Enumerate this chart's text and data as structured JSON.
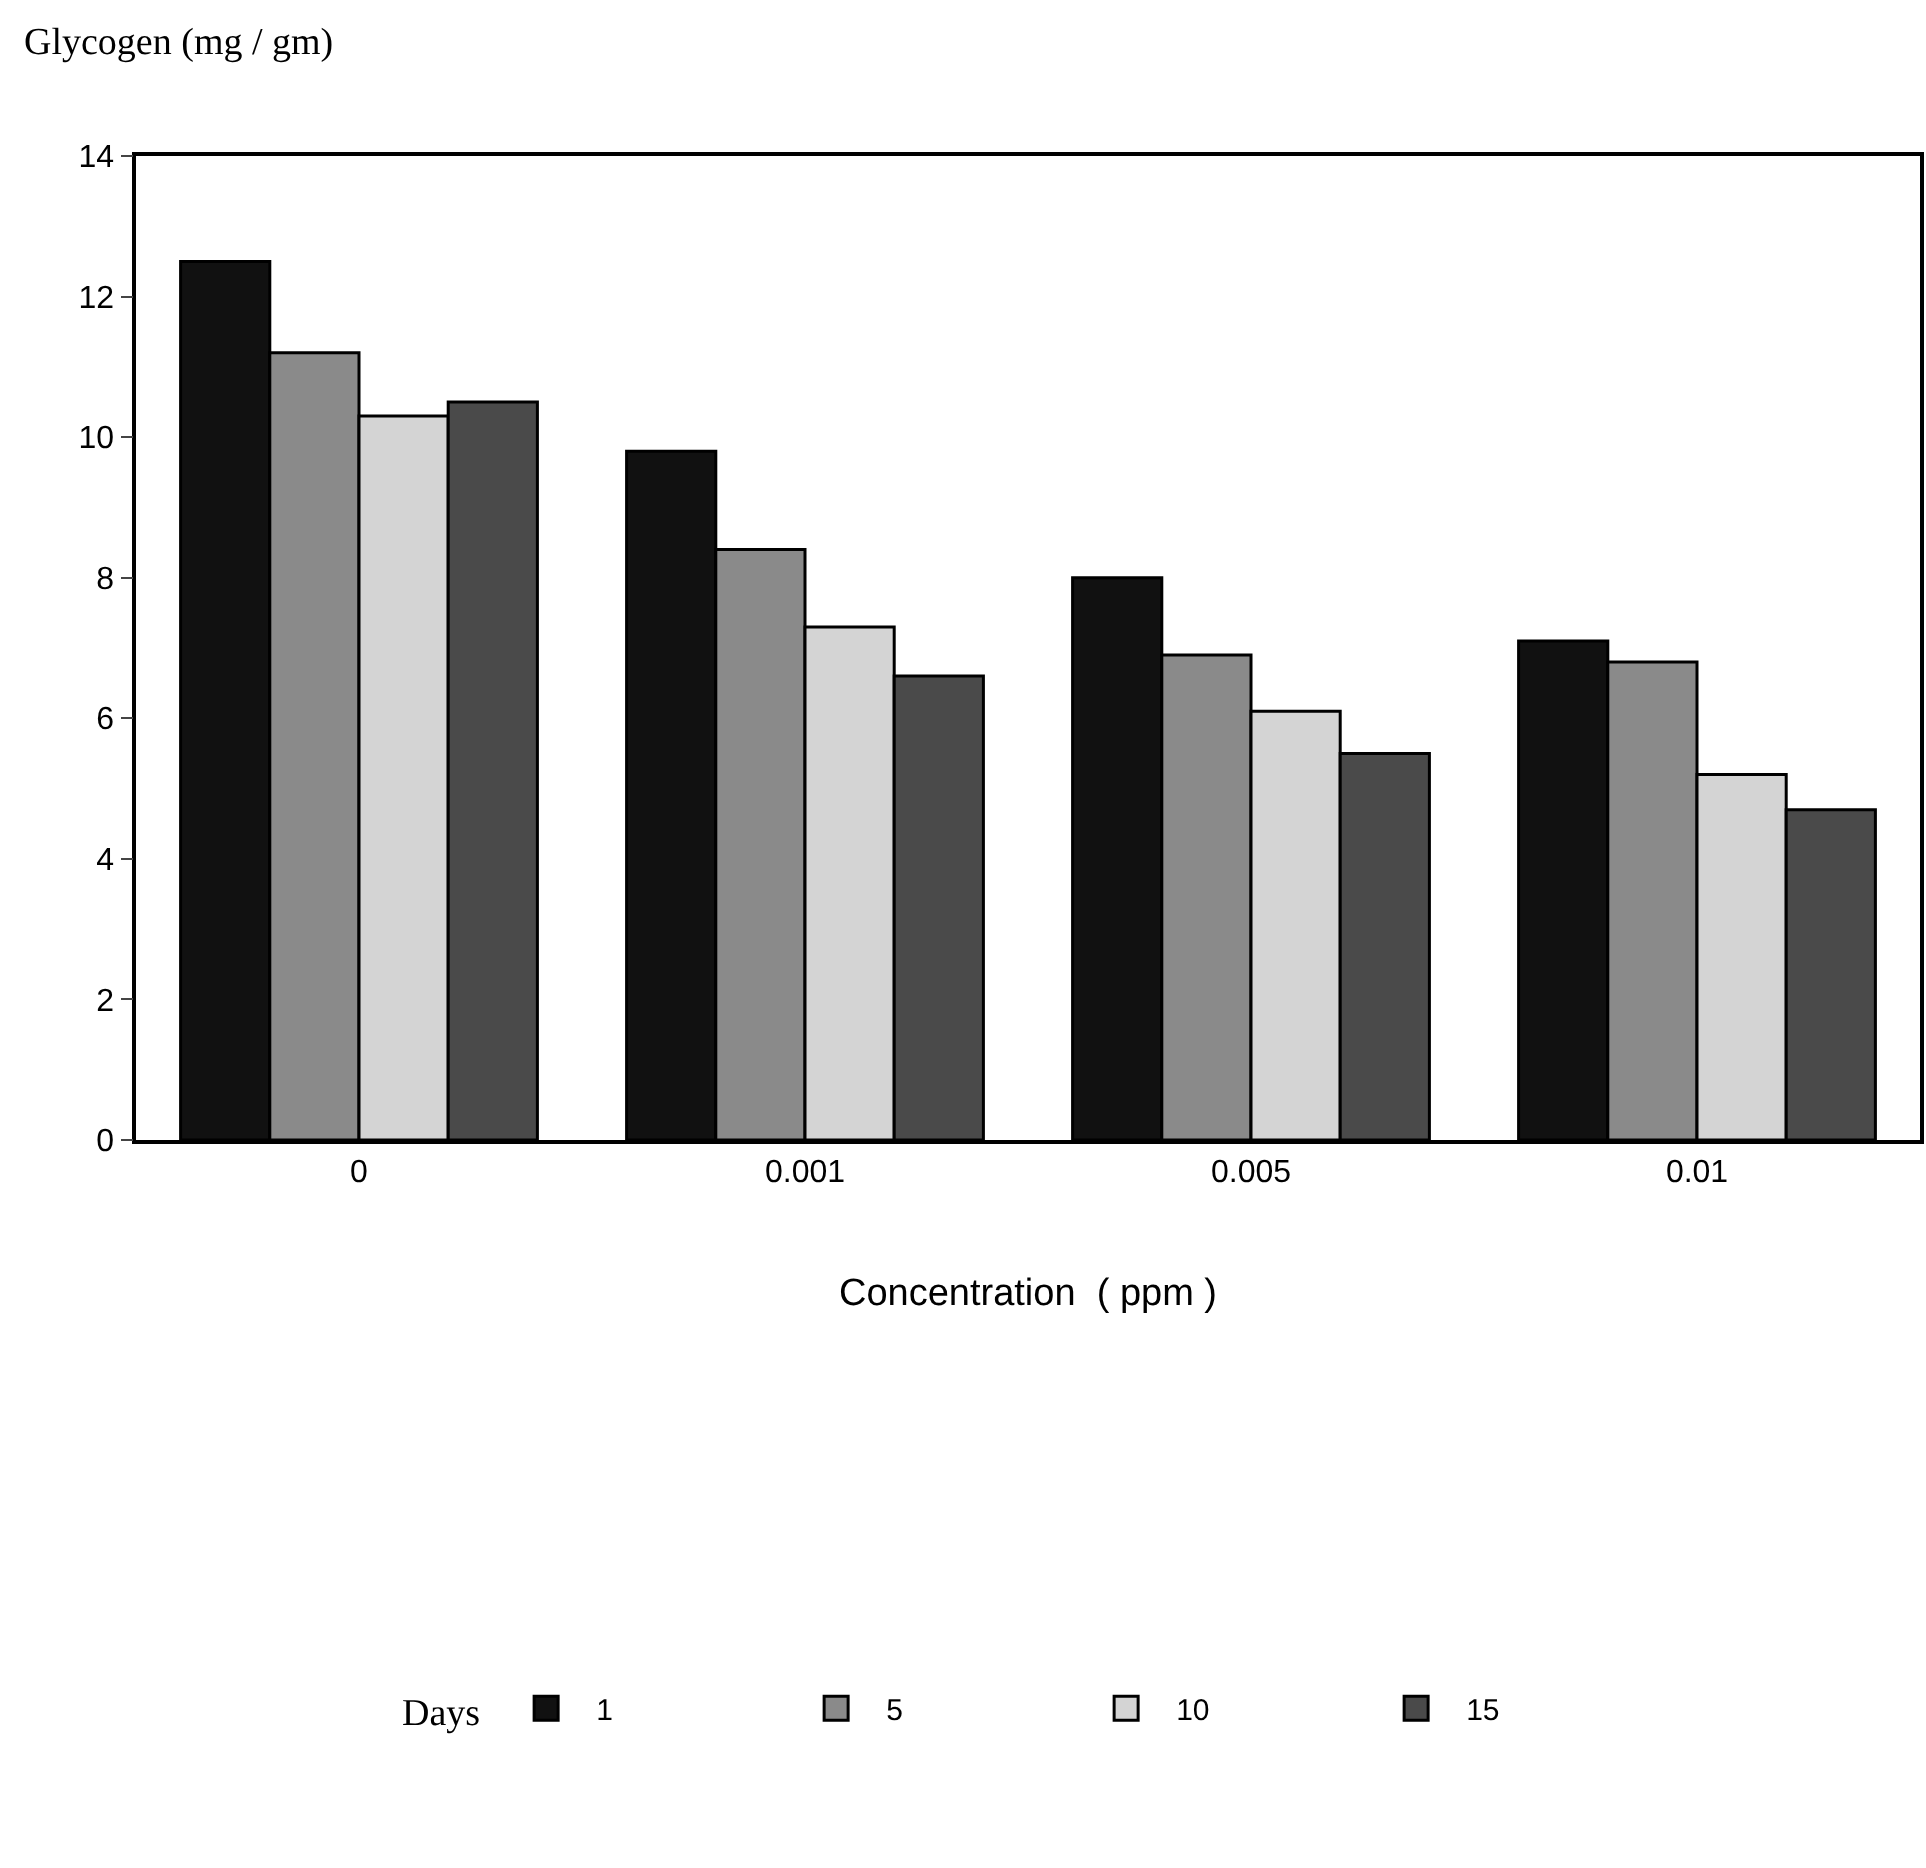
{
  "chart_data": {
    "type": "bar",
    "ylabel": "Glycogen (mg / gm)",
    "xlabel": "Concentration  ( ppm )",
    "legend_title": "Days",
    "categories": [
      "0",
      "0.001",
      "0.005",
      "0.01"
    ],
    "series": [
      {
        "name": "1",
        "color": "#111111",
        "values": [
          12.5,
          9.8,
          8.0,
          7.1
        ]
      },
      {
        "name": "5",
        "color": "#8a8a8a",
        "values": [
          11.2,
          8.4,
          6.9,
          6.8
        ]
      },
      {
        "name": "10",
        "color": "#d4d4d4",
        "values": [
          10.3,
          7.3,
          6.1,
          5.2
        ]
      },
      {
        "name": "15",
        "color": "#4a4a4a",
        "values": [
          10.5,
          6.6,
          5.5,
          4.7
        ]
      }
    ],
    "ylim": [
      0,
      14
    ],
    "yticks": [
      0,
      2,
      4,
      6,
      8,
      10,
      12,
      14
    ],
    "grid": false,
    "legend": "bottom"
  }
}
